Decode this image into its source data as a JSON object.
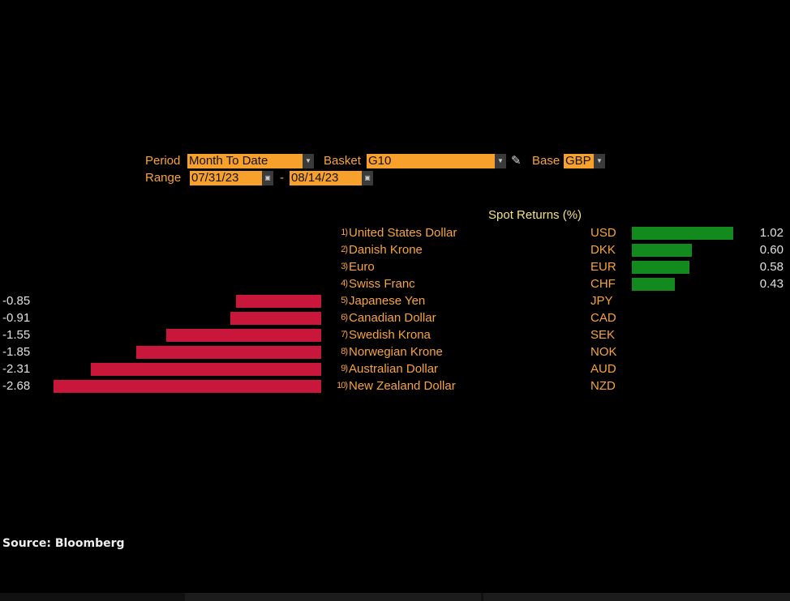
{
  "controls": {
    "period_label": "Period",
    "period_value": "Month To Date",
    "basket_label": "Basket",
    "basket_value": "G10",
    "base_label": "Base",
    "base_value": "GBP",
    "range_label": "Range",
    "range_start": "07/31/23",
    "range_sep": "-",
    "range_end": "08/14/23"
  },
  "header": "Spot Returns (%)",
  "colors": {
    "negative": "#c8173a",
    "positive": "#138a1e",
    "accent": "#f7a02c"
  },
  "chart_data": {
    "type": "bar",
    "title": "Spot Returns (%)",
    "categories": [
      "United States Dollar",
      "Danish Krone",
      "Euro",
      "Swiss Franc",
      "Japanese Yen",
      "Canadian Dollar",
      "Swedish Krona",
      "Norwegian Krone",
      "Australian Dollar",
      "New Zealand Dollar"
    ],
    "rows": [
      {
        "idx": "1)",
        "name": "United States Dollar",
        "code": "USD",
        "value": 1.02,
        "label": "1.02"
      },
      {
        "idx": "2)",
        "name": "Danish Krone",
        "code": "DKK",
        "value": 0.6,
        "label": "0.60"
      },
      {
        "idx": "3)",
        "name": "Euro",
        "code": "EUR",
        "value": 0.58,
        "label": "0.58"
      },
      {
        "idx": "4)",
        "name": "Swiss Franc",
        "code": "CHF",
        "value": 0.43,
        "label": "0.43"
      },
      {
        "idx": "5)",
        "name": "Japanese Yen",
        "code": "JPY",
        "value": -0.85,
        "label": "-0.85"
      },
      {
        "idx": "6)",
        "name": "Canadian Dollar",
        "code": "CAD",
        "value": -0.91,
        "label": "-0.91"
      },
      {
        "idx": "7)",
        "name": "Swedish Krona",
        "code": "SEK",
        "value": -1.55,
        "label": "-1.55"
      },
      {
        "idx": "8)",
        "name": "Norwegian Krone",
        "code": "NOK",
        "value": -1.85,
        "label": "-1.85"
      },
      {
        "idx": "9)",
        "name": "Australian Dollar",
        "code": "AUD",
        "value": -2.31,
        "label": "-2.31"
      },
      {
        "idx": "10)",
        "name": "New Zealand Dollar",
        "code": "NZD",
        "value": -2.68,
        "label": "-2.68"
      }
    ]
  },
  "footer": {
    "source": "Source: Bloomberg"
  }
}
